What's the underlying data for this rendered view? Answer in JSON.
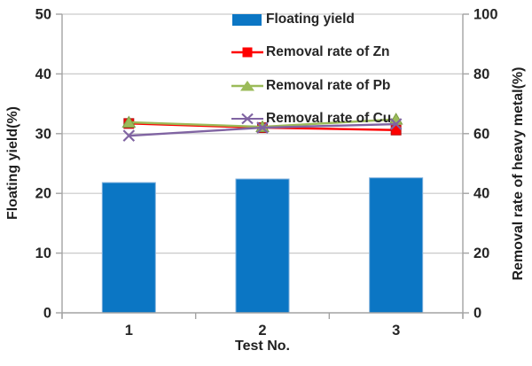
{
  "chart_data": {
    "type": "combo-bar-line",
    "title": "",
    "categories": [
      "1",
      "2",
      "3"
    ],
    "xlabel": "Test No.",
    "left_axis": {
      "label": "Floating yield(%)",
      "min": 0,
      "max": 50,
      "tick_step": 10,
      "ticks": [
        "0",
        "10",
        "20",
        "30",
        "40",
        "50"
      ]
    },
    "right_axis": {
      "label": "Removal rate of heavy metal(%)",
      "min": 0,
      "max": 100,
      "tick_step": 20,
      "ticks": [
        "0",
        "20",
        "40",
        "60",
        "80",
        "100"
      ]
    },
    "grid": true,
    "legend_position": "top-center",
    "bar_series": {
      "name": "Floating yield",
      "axis": "left",
      "color": "#0b76c4",
      "edge_color": "#7fb0dd",
      "values": [
        21.8,
        22.4,
        22.6
      ]
    },
    "line_series": [
      {
        "name": "Removal rate of Zn",
        "axis": "right",
        "marker": "square",
        "color": "#fe0000",
        "edge_color": "#b31212",
        "values": [
          63.4,
          62.0,
          61.2
        ]
      },
      {
        "name": "Removal rate of Pb",
        "axis": "right",
        "marker": "triangle",
        "color": "#9bbb59",
        "edge_color": "#7e9e45",
        "values": [
          63.8,
          62.3,
          64.8
        ]
      },
      {
        "name": "Removal rate of Cu",
        "axis": "right",
        "marker": "x",
        "color": "#8064a2",
        "edge_color": "#8064a2",
        "values": [
          59.3,
          62.0,
          63.2
        ]
      }
    ],
    "colors": {
      "gridline": "#c9c9c9",
      "axis_line": "#a3a3a3",
      "tick_text": "#262626"
    }
  }
}
